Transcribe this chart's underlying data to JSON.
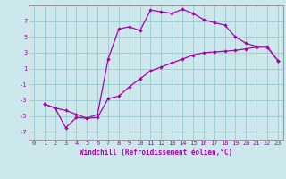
{
  "xlabel": "Windchill (Refroidissement éolien,°C)",
  "bg_color": "#cce8ec",
  "grid_color": "#99c8d0",
  "line_color": "#aa00aa",
  "spine_color": "#888888",
  "xlim": [
    -0.5,
    23.5
  ],
  "ylim": [
    -8,
    9
  ],
  "xticks": [
    0,
    1,
    2,
    3,
    4,
    5,
    6,
    7,
    8,
    9,
    10,
    11,
    12,
    13,
    14,
    15,
    16,
    17,
    18,
    19,
    20,
    21,
    22,
    23
  ],
  "yticks": [
    -7,
    -5,
    -3,
    -1,
    1,
    3,
    5,
    7
  ],
  "line1_x": [
    1,
    2,
    3,
    4,
    5,
    6,
    7,
    8,
    9,
    10,
    11,
    12,
    13,
    14,
    15,
    16,
    17,
    18,
    19,
    20,
    21,
    22,
    23
  ],
  "line1_y": [
    -3.5,
    -4.0,
    -6.5,
    -5.2,
    -5.3,
    -4.8,
    2.2,
    6.0,
    6.3,
    5.8,
    8.4,
    8.2,
    8.0,
    8.5,
    8.0,
    7.2,
    6.8,
    6.5,
    5.0,
    4.2,
    3.8,
    3.8,
    2.0
  ],
  "line2_x": [
    1,
    2,
    3,
    4,
    5,
    6,
    7,
    8,
    9,
    10,
    11,
    12,
    13,
    14,
    15,
    16,
    17,
    18,
    19,
    20,
    21,
    22,
    23
  ],
  "line2_y": [
    -3.5,
    -4.0,
    -4.3,
    -4.8,
    -5.3,
    -5.2,
    -2.8,
    -2.5,
    -1.3,
    -0.3,
    0.7,
    1.2,
    1.7,
    2.2,
    2.7,
    3.0,
    3.1,
    3.2,
    3.3,
    3.5,
    3.7,
    3.7,
    2.0
  ],
  "tick_fontsize": 5.0,
  "xlabel_fontsize": 5.5,
  "marker_size": 2.2,
  "linewidth": 0.9
}
